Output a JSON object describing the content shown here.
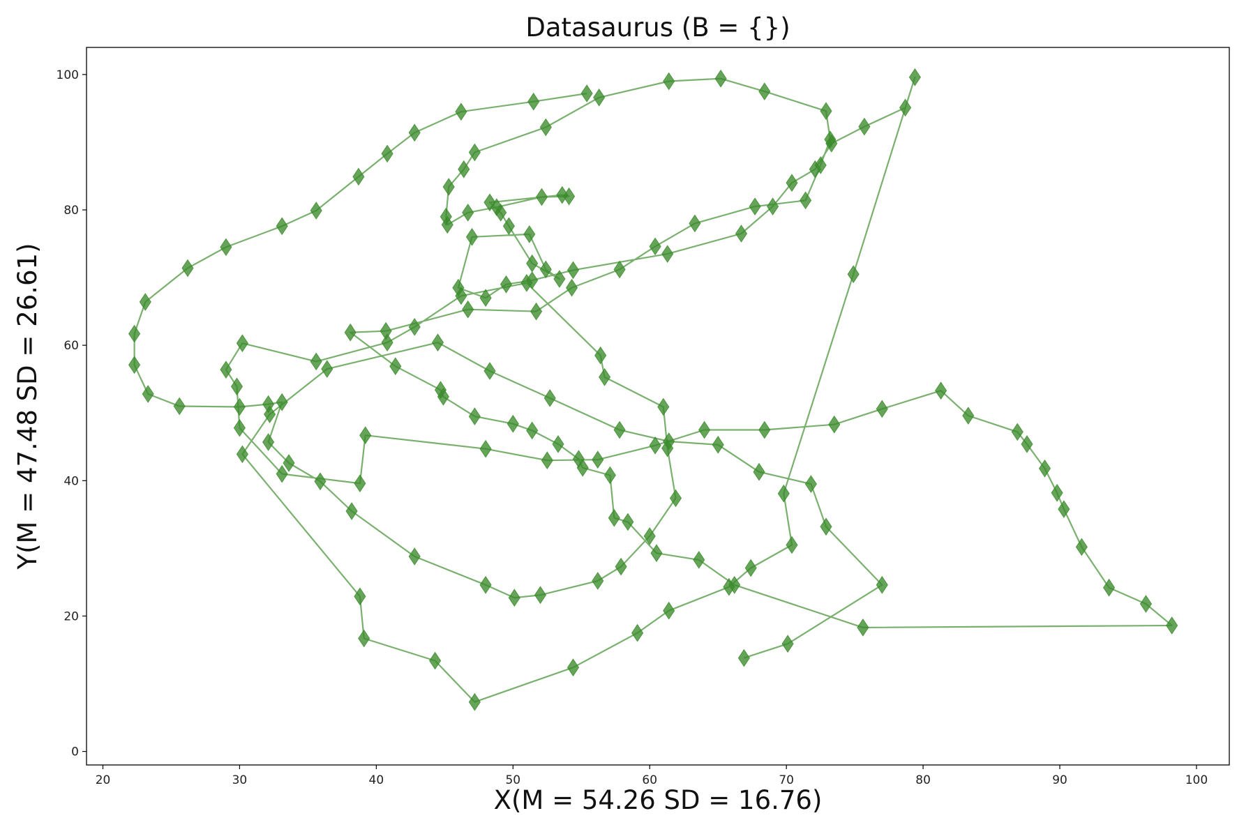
{
  "chart_data": {
    "type": "line",
    "title": "Datasaurus (B = {})",
    "xlabel": "X(M = 54.26 SD = 16.76)",
    "ylabel": "Y(M = 47.48 SD = 26.61)",
    "xlim": [
      18.8,
      102.4
    ],
    "ylim": [
      -2,
      104
    ],
    "xticks": [
      "20",
      "30",
      "40",
      "50",
      "60",
      "70",
      "80",
      "90",
      "100"
    ],
    "yticks": [
      "0",
      "20",
      "40",
      "60",
      "80",
      "100"
    ],
    "grid": false,
    "marker": "diamond",
    "color": "#3a8a2a",
    "series": [
      {
        "x": [
          55.4,
          51.5,
          46.2,
          42.8,
          40.8,
          38.7,
          35.6,
          33.1,
          29.0,
          26.2,
          23.1,
          22.3,
          22.3,
          23.3,
          25.6,
          30.0,
          32.1,
          33.1,
          32.1,
          33.6,
          35.9,
          38.2,
          42.8,
          48.0,
          50.1,
          52.0,
          56.2,
          57.9,
          60.0,
          61.9,
          61.3,
          61.0,
          56.7,
          56.4,
          51.0,
          46.2,
          42.8,
          40.8,
          35.6,
          30.2,
          29.0,
          29.8,
          30.0,
          33.1,
          38.8,
          39.2,
          48.0,
          52.5,
          56.2,
          60.4,
          64.0,
          68.4,
          73.5,
          77.0,
          81.3,
          83.3,
          86.9,
          87.6,
          88.9,
          89.8,
          90.3,
          91.6,
          93.6,
          96.3,
          98.2,
          75.6,
          66.2,
          63.6,
          60.5,
          58.4,
          57.4,
          57.1,
          55.1,
          54.8,
          53.3,
          51.4,
          50.0,
          47.2,
          44.9,
          44.7,
          41.4,
          38.1,
          40.7,
          46.7,
          51.7,
          54.3,
          57.8,
          60.4,
          63.3,
          67.7,
          71.4,
          72.5,
          73.2,
          72.9,
          68.4,
          65.2,
          61.4,
          56.3,
          52.4,
          47.2,
          46.4,
          45.3,
          45.1,
          45.2,
          46.7,
          48.8,
          52.1,
          54.1,
          53.6,
          48.3,
          49.1,
          49.7,
          51.4,
          53.4,
          52.4,
          51.2,
          47.0,
          46.0,
          48.0,
          49.5,
          51.4,
          54.4,
          61.3,
          66.7,
          69.0,
          70.4,
          72.1,
          73.3,
          75.7,
          78.7,
          79.4,
          74.9,
          69.8,
          70.4,
          67.4,
          65.8,
          61.4,
          59.1,
          54.4,
          47.2,
          44.3,
          39.1,
          38.8,
          30.2,
          32.2,
          36.4,
          44.5,
          48.3,
          52.7,
          57.8,
          61.4,
          65.0,
          68.0,
          71.8,
          72.9,
          77.0,
          70.1,
          66.9
        ],
        "y": [
          97.2,
          96.0,
          94.5,
          91.4,
          88.3,
          84.9,
          79.9,
          77.6,
          74.5,
          71.4,
          66.4,
          61.7,
          57.1,
          52.8,
          51.0,
          50.9,
          51.3,
          51.6,
          45.7,
          42.6,
          39.9,
          35.5,
          28.8,
          24.6,
          22.7,
          23.1,
          25.2,
          27.3,
          31.8,
          37.4,
          44.8,
          50.9,
          55.3,
          58.5,
          69.2,
          67.3,
          62.7,
          60.4,
          57.6,
          60.3,
          56.4,
          53.9,
          47.8,
          41.0,
          39.6,
          46.7,
          44.7,
          43.0,
          43.1,
          45.2,
          47.5,
          47.5,
          48.3,
          50.6,
          53.3,
          49.6,
          47.2,
          45.4,
          41.8,
          38.2,
          35.8,
          30.2,
          24.2,
          21.8,
          18.6,
          18.3,
          24.6,
          28.3,
          29.3,
          33.9,
          34.5,
          40.8,
          41.9,
          43.2,
          45.4,
          47.4,
          48.4,
          49.5,
          52.4,
          53.4,
          56.9,
          61.9,
          62.1,
          65.3,
          65.0,
          68.5,
          71.2,
          74.6,
          78.0,
          80.5,
          81.4,
          86.6,
          90.4,
          94.6,
          97.5,
          99.4,
          99.0,
          96.6,
          92.2,
          88.5,
          86.0,
          83.4,
          79.0,
          77.8,
          79.6,
          80.4,
          81.9,
          82.0,
          82.2,
          81.1,
          79.6,
          77.6,
          72.1,
          69.8,
          71.2,
          76.4,
          76.0,
          68.5,
          67.0,
          69.0,
          69.6,
          71.1,
          73.5,
          76.5,
          80.5,
          84.0,
          86.0,
          89.8,
          92.3,
          95.1,
          99.6,
          70.5,
          38.1,
          30.5,
          27.1,
          24.3,
          20.8,
          17.5,
          12.4,
          7.3,
          13.4,
          16.7,
          22.9,
          43.9,
          49.8,
          56.5,
          60.4,
          56.2,
          52.2,
          47.5,
          45.8,
          45.3,
          41.3,
          39.5,
          33.2,
          24.6,
          15.9,
          13.8
        ]
      }
    ]
  }
}
